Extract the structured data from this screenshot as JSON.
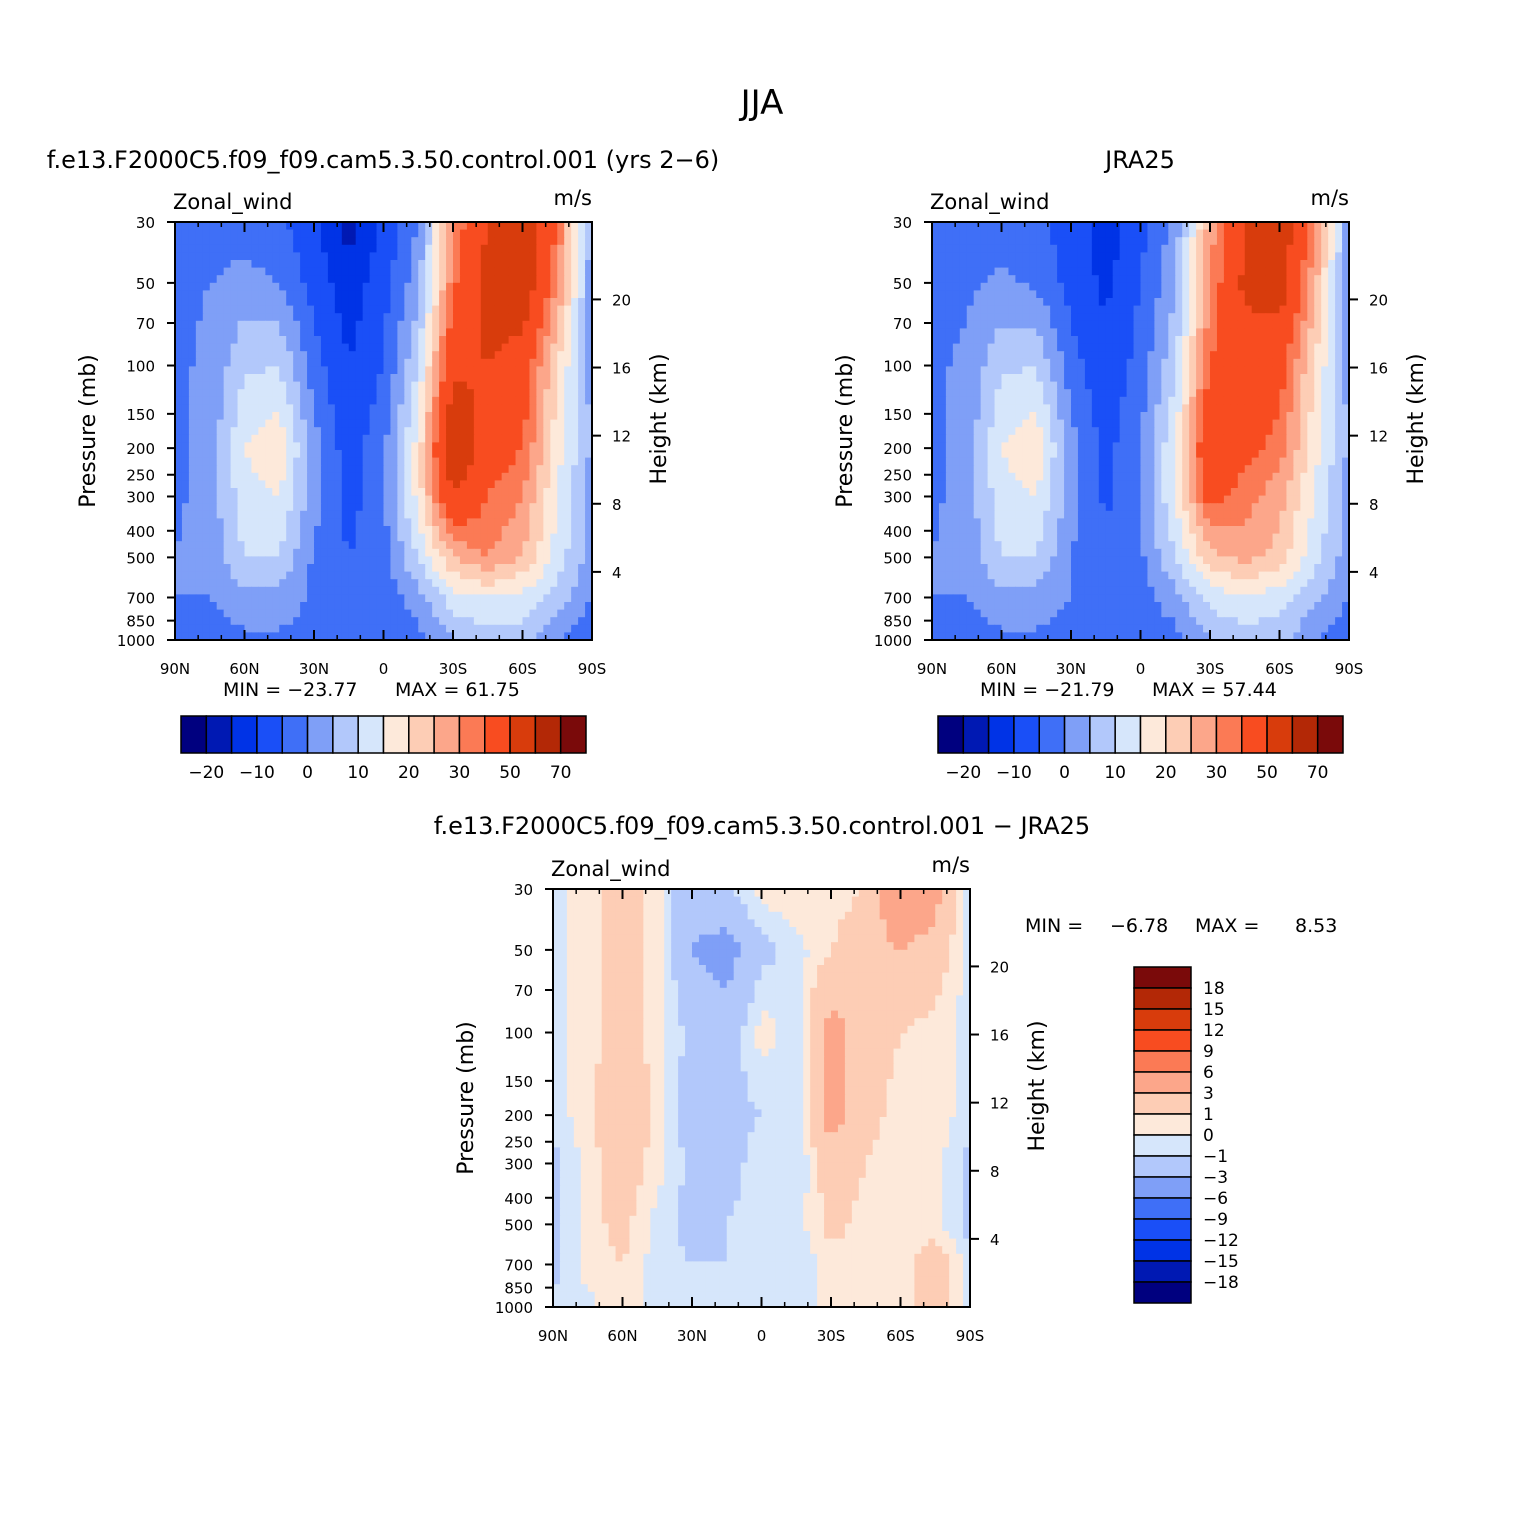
{
  "title": "JJA",
  "chart_data": [
    {
      "type": "heatmap",
      "title": "f.e13.F2000C5.f09_f09.cam5.3.50.control.001 (yrs 2−6)",
      "variable": "Zonal_wind",
      "units": "m/s",
      "xlabel": "",
      "ylabel": "Pressure (mb)",
      "ylabel_right": "Height (km)",
      "x_ticks": [
        "90N",
        "60N",
        "30N",
        "0",
        "30S",
        "60S",
        "90S"
      ],
      "x_values": [
        90,
        60,
        30,
        0,
        -30,
        -60,
        -90
      ],
      "y_ticks": [
        "30",
        "50",
        "70",
        "100",
        "150",
        "200",
        "250",
        "300",
        "400",
        "500",
        "700",
        "850",
        "1000"
      ],
      "y_values": [
        30,
        50,
        70,
        100,
        150,
        200,
        250,
        300,
        400,
        500,
        700,
        850,
        1000
      ],
      "y_log": true,
      "height_ticks": [
        "20",
        "16",
        "12",
        "8",
        "4"
      ],
      "height_values": [
        20,
        16,
        12,
        8,
        4
      ],
      "min_label": "MIN = −23.77",
      "max_label": "MAX =   61.75",
      "min": -23.77,
      "max": 61.75,
      "colorbar_labels": [
        "−20",
        "−10",
        "0",
        "10",
        "20",
        "30",
        "50",
        "70"
      ],
      "colorbar_orientation": "horizontal",
      "field": {
        "x": [
          90,
          75,
          60,
          45,
          30,
          15,
          0,
          -15,
          -30,
          -45,
          -60,
          -75,
          -90
        ],
        "p": [
          30,
          50,
          100,
          200,
          300,
          500,
          700,
          1000
        ],
        "values": [
          [
            -8,
            -8,
            -8,
            -9,
            -14,
            -22,
            -14,
            -5,
            25,
            40,
            50,
            30,
            -3
          ],
          [
            -6,
            -5,
            -3,
            -5,
            -12,
            -18,
            -12,
            -2,
            28,
            45,
            48,
            25,
            -3
          ],
          [
            -6,
            -4,
            4,
            5,
            -8,
            -15,
            -10,
            5,
            38,
            40,
            35,
            15,
            -2
          ],
          [
            -6,
            -3,
            10,
            14,
            -3,
            -13,
            -6,
            12,
            50,
            35,
            30,
            12,
            -1
          ],
          [
            -6,
            -3,
            8,
            10,
            -3,
            -12,
            -6,
            12,
            40,
            30,
            25,
            10,
            -2
          ],
          [
            -5,
            -3,
            5,
            5,
            -6,
            -10,
            -7,
            5,
            20,
            25,
            20,
            8,
            -3
          ],
          [
            -5,
            -5,
            -2,
            -2,
            -6,
            -8,
            -8,
            -2,
            8,
            10,
            8,
            3,
            -5
          ],
          [
            -7,
            -7,
            -6,
            -6,
            -7,
            -7,
            -8,
            -7,
            0,
            3,
            3,
            -5,
            -10
          ]
        ]
      }
    },
    {
      "type": "heatmap",
      "title": "JRA25",
      "variable": "Zonal_wind",
      "units": "m/s",
      "xlabel": "",
      "ylabel": "Pressure (mb)",
      "ylabel_right": "Height (km)",
      "x_ticks": [
        "90N",
        "60N",
        "30N",
        "0",
        "30S",
        "60S",
        "90S"
      ],
      "x_values": [
        90,
        60,
        30,
        0,
        -30,
        -60,
        -90
      ],
      "y_ticks": [
        "30",
        "50",
        "70",
        "100",
        "150",
        "200",
        "250",
        "300",
        "400",
        "500",
        "700",
        "850",
        "1000"
      ],
      "y_values": [
        30,
        50,
        70,
        100,
        150,
        200,
        250,
        300,
        400,
        500,
        700,
        850,
        1000
      ],
      "y_log": true,
      "height_ticks": [
        "20",
        "16",
        "12",
        "8",
        "4"
      ],
      "height_values": [
        20,
        16,
        12,
        8,
        4
      ],
      "min_label": "MIN = −21.79",
      "max_label": "MAX =   57.44",
      "min": -21.79,
      "max": 57.44,
      "colorbar_labels": [
        "−20",
        "−10",
        "0",
        "10",
        "20",
        "30",
        "50",
        "70"
      ],
      "colorbar_orientation": "horizontal",
      "field": {
        "x": [
          90,
          75,
          60,
          45,
          30,
          15,
          0,
          -15,
          -30,
          -45,
          -60,
          -75,
          -90
        ],
        "p": [
          30,
          50,
          100,
          200,
          300,
          500,
          700,
          1000
        ],
        "values": [
          [
            -8,
            -8,
            -8,
            -9,
            -12,
            -18,
            -12,
            -3,
            22,
            40,
            48,
            25,
            -3
          ],
          [
            -7,
            -6,
            -4,
            -6,
            -12,
            -16,
            -10,
            -1,
            25,
            42,
            45,
            22,
            -3
          ],
          [
            -6,
            -4,
            4,
            5,
            -8,
            -14,
            -8,
            4,
            30,
            35,
            33,
            15,
            -2
          ],
          [
            -6,
            -3,
            10,
            14,
            -3,
            -12,
            -5,
            10,
            40,
            32,
            28,
            12,
            -1
          ],
          [
            -6,
            -3,
            8,
            10,
            -3,
            -11,
            -5,
            10,
            33,
            27,
            22,
            10,
            -2
          ],
          [
            -5,
            -3,
            5,
            5,
            -5,
            -9,
            -6,
            5,
            18,
            22,
            18,
            7,
            -3
          ],
          [
            -5,
            -5,
            -2,
            -2,
            -5,
            -7,
            -7,
            -2,
            7,
            9,
            7,
            2,
            -5
          ],
          [
            -7,
            -7,
            -6,
            -6,
            -7,
            -7,
            -8,
            -7,
            0,
            3,
            2,
            -5,
            -10
          ]
        ]
      }
    },
    {
      "type": "heatmap",
      "title": "f.e13.F2000C5.f09_f09.cam5.3.50.control.001 − JRA25",
      "variable": "Zonal_wind",
      "units": "m/s",
      "xlabel": "",
      "ylabel": "Pressure (mb)",
      "ylabel_right": "Height (km)",
      "x_ticks": [
        "90N",
        "60N",
        "30N",
        "0",
        "30S",
        "60S",
        "90S"
      ],
      "x_values": [
        90,
        60,
        30,
        0,
        -30,
        -60,
        -90
      ],
      "y_ticks": [
        "30",
        "50",
        "70",
        "100",
        "150",
        "200",
        "250",
        "300",
        "400",
        "500",
        "700",
        "850",
        "1000"
      ],
      "y_values": [
        30,
        50,
        70,
        100,
        150,
        200,
        250,
        300,
        400,
        500,
        700,
        850,
        1000
      ],
      "y_log": true,
      "height_ticks": [
        "20",
        "16",
        "12",
        "8",
        "4"
      ],
      "height_values": [
        20,
        16,
        12,
        8,
        4
      ],
      "min_label": "MIN =",
      "min_value": "−6.78",
      "max_label": "MAX =",
      "max_value": "8.53",
      "min": -6.78,
      "max": 8.53,
      "colorbar_labels": [
        "18",
        "15",
        "12",
        "9",
        "6",
        "3",
        "1",
        "0",
        "−1",
        "−3",
        "−6",
        "−9",
        "−12",
        "−15",
        "−18"
      ],
      "colorbar_orientation": "vertical",
      "field": {
        "x": [
          90,
          75,
          60,
          45,
          30,
          15,
          0,
          -15,
          -30,
          -45,
          -60,
          -75,
          -90
        ],
        "p": [
          30,
          50,
          100,
          200,
          300,
          500,
          700,
          1000
        ],
        "values": [
          [
            -0.5,
            0.5,
            1.5,
            0.5,
            -2.5,
            -1,
            0.5,
            1,
            0.5,
            1,
            6,
            4,
            -0.5
          ],
          [
            -0.5,
            0.5,
            1.5,
            0.5,
            -3,
            -4,
            -1.5,
            -0.5,
            1,
            2,
            3,
            2,
            -0.5
          ],
          [
            -0.5,
            0.5,
            2,
            0.5,
            -1.5,
            -2,
            0.5,
            -0.5,
            4,
            2,
            1,
            0.5,
            -0.5
          ],
          [
            -0.5,
            0.5,
            2.5,
            0.5,
            -2,
            -1.5,
            -1,
            -0.5,
            4,
            1.5,
            0.5,
            0.5,
            -0.5
          ],
          [
            -1.5,
            0.5,
            2,
            0.5,
            -1.5,
            -1.5,
            -0.5,
            -1,
            2,
            1,
            0.5,
            0.5,
            -1.5
          ],
          [
            -1.5,
            0.5,
            1.5,
            -0.5,
            -1.5,
            -1,
            -0.5,
            -0.5,
            1.5,
            0.5,
            0.5,
            0.5,
            -1.5
          ],
          [
            -1.5,
            0.5,
            1,
            -0.5,
            -1,
            -1,
            -0.5,
            -1,
            0.5,
            0.5,
            0.5,
            2,
            -0.5
          ],
          [
            -0.5,
            -0.5,
            1,
            -0.5,
            -1,
            -1,
            -0.5,
            -0.5,
            0.5,
            0.5,
            0.5,
            2,
            -0.5
          ]
        ]
      }
    }
  ],
  "palettes": {
    "main_colors": [
      "#00007f",
      "#0019b3",
      "#0033e6",
      "#1a4ff7",
      "#3f6ff7",
      "#7f9ff7",
      "#b2c8fb",
      "#d6e6fb",
      "#fde9da",
      "#fdcdb5",
      "#fca68a",
      "#fb7a55",
      "#f84c20",
      "#d83c0c",
      "#b32806",
      "#7a0a0a"
    ],
    "main_bounds": [
      -25,
      -20,
      -15,
      -10,
      -5,
      0,
      5,
      10,
      15,
      20,
      25,
      30,
      40,
      50,
      60,
      70
    ],
    "diff_colors": [
      "#00007f",
      "#0019b3",
      "#0033e6",
      "#1a4ff7",
      "#3f6ff7",
      "#7f9ff7",
      "#b2c8fb",
      "#d6e6fb",
      "#fde9da",
      "#fdcdb5",
      "#fca68a",
      "#fb7a55",
      "#f84c20",
      "#d83c0c",
      "#b32806",
      "#7a0a0a"
    ],
    "diff_bounds": [
      -18,
      -15,
      -12,
      -9,
      -6,
      -3,
      -1,
      0,
      1,
      3,
      6,
      9,
      12,
      15,
      18
    ]
  }
}
